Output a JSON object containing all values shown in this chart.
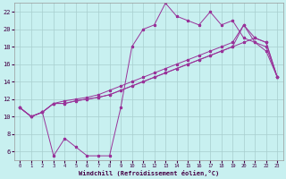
{
  "bg_color": "#c8f0f0",
  "grid_color": "#a8cece",
  "line_color": "#993399",
  "xlim": [
    -0.5,
    23.5
  ],
  "ylim": [
    5.0,
    23.0
  ],
  "xticks": [
    0,
    1,
    2,
    3,
    4,
    5,
    6,
    7,
    8,
    9,
    10,
    11,
    12,
    13,
    14,
    15,
    16,
    17,
    18,
    19,
    20,
    21,
    22,
    23
  ],
  "yticks": [
    6,
    8,
    10,
    12,
    14,
    16,
    18,
    20,
    22
  ],
  "xlabel": "Windchill (Refroidissement éolien,°C)",
  "series_jagged": [
    11.0,
    10.0,
    10.5,
    5.5,
    7.5,
    6.5,
    5.5,
    5.5,
    5.5,
    11.0,
    18.0,
    20.0,
    20.5,
    23.0,
    21.5,
    21.0,
    20.5,
    22.0,
    20.5,
    21.0,
    19.0,
    18.5,
    17.5,
    14.5
  ],
  "series_line1": [
    11.0,
    10.0,
    10.5,
    11.5,
    11.5,
    11.8,
    12.0,
    12.2,
    12.5,
    13.0,
    13.5,
    14.0,
    14.5,
    15.0,
    15.5,
    16.0,
    16.5,
    17.0,
    17.5,
    18.0,
    18.5,
    19.0,
    18.5,
    14.5
  ],
  "series_line2": [
    11.0,
    10.0,
    10.5,
    11.5,
    11.5,
    11.8,
    12.0,
    12.2,
    12.5,
    13.0,
    13.5,
    14.0,
    14.5,
    15.0,
    15.5,
    16.0,
    16.5,
    17.0,
    17.5,
    18.0,
    20.5,
    18.5,
    18.0,
    14.5
  ],
  "series_line3": [
    11.0,
    10.0,
    10.5,
    11.5,
    11.8,
    12.0,
    12.2,
    12.5,
    13.0,
    13.5,
    14.0,
    14.5,
    15.0,
    15.5,
    16.0,
    16.5,
    17.0,
    17.5,
    18.0,
    18.5,
    20.5,
    19.0,
    18.5,
    14.5
  ]
}
